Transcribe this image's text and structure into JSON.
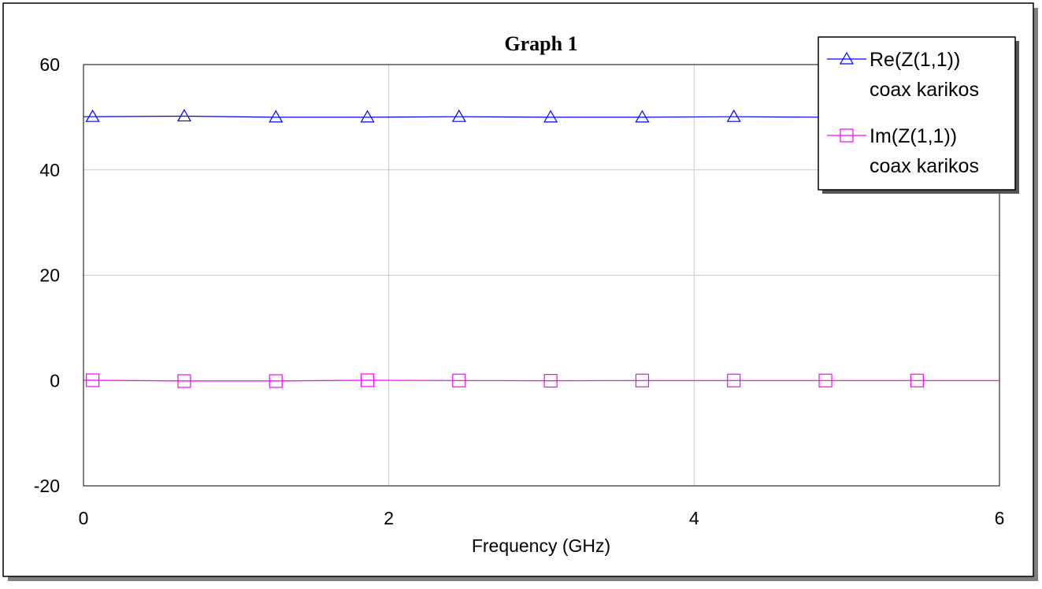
{
  "chart_data": {
    "type": "line",
    "title": "Graph 1",
    "xlabel": "Frequency (GHz)",
    "ylabel": "",
    "xlim": [
      0,
      6
    ],
    "ylim": [
      -20,
      60
    ],
    "xticks": [
      "0",
      "2",
      "4",
      "6"
    ],
    "yticks": [
      "60",
      "40",
      "20",
      "0",
      "-20"
    ],
    "grid": true,
    "legend_position": "top-right",
    "series": [
      {
        "name": "Re(Z(1,1))",
        "name_line2": "coax karikos",
        "color": "#0000ff",
        "marker": "triangle",
        "x": [
          0.06,
          0.66,
          1.26,
          1.86,
          2.46,
          3.06,
          3.66,
          4.26,
          4.86,
          5.46
        ],
        "y": [
          50.1,
          50.2,
          50.0,
          50.0,
          50.1,
          50.0,
          50.0,
          50.1,
          50.0,
          50.0
        ]
      },
      {
        "name": "Im(Z(1,1))",
        "name_line2": "coax karikos",
        "color": "#ff00ff",
        "marker": "square",
        "x": [
          0.06,
          0.66,
          1.26,
          1.86,
          2.46,
          3.06,
          3.66,
          4.26,
          4.86,
          5.46
        ],
        "y": [
          0.05,
          -0.1,
          -0.1,
          0.05,
          0.0,
          -0.05,
          0.0,
          0.0,
          0.0,
          0.0
        ]
      }
    ]
  }
}
